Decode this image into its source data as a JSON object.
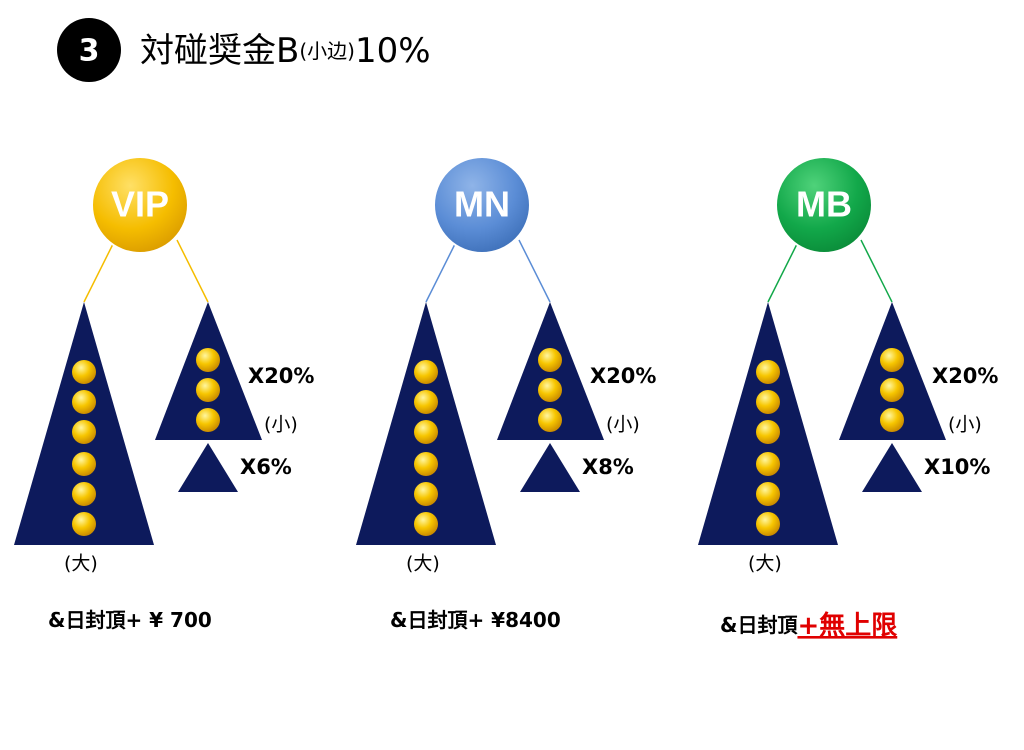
{
  "header": {
    "number": "3",
    "title": "対碰奨金B",
    "title_small": "(小边)",
    "title_rate": "10%"
  },
  "columns": [
    {
      "badge": "VIP",
      "small_rate": "X20%",
      "small_label": "(小)",
      "extra_rate": "X6%",
      "big_label": "(大)",
      "cap": "&日封頂+ ¥ 700"
    },
    {
      "badge": "MN",
      "small_rate": "X20%",
      "small_label": "(小)",
      "extra_rate": "X8%",
      "big_label": "(大)",
      "cap": "&日封頂+ ¥8400"
    },
    {
      "badge": "MB",
      "small_rate": "X20%",
      "small_label": "(小)",
      "extra_rate": "X10%",
      "big_label": "(大)",
      "cap": "&日封頂",
      "cap_highlight": "+無上限"
    }
  ]
}
